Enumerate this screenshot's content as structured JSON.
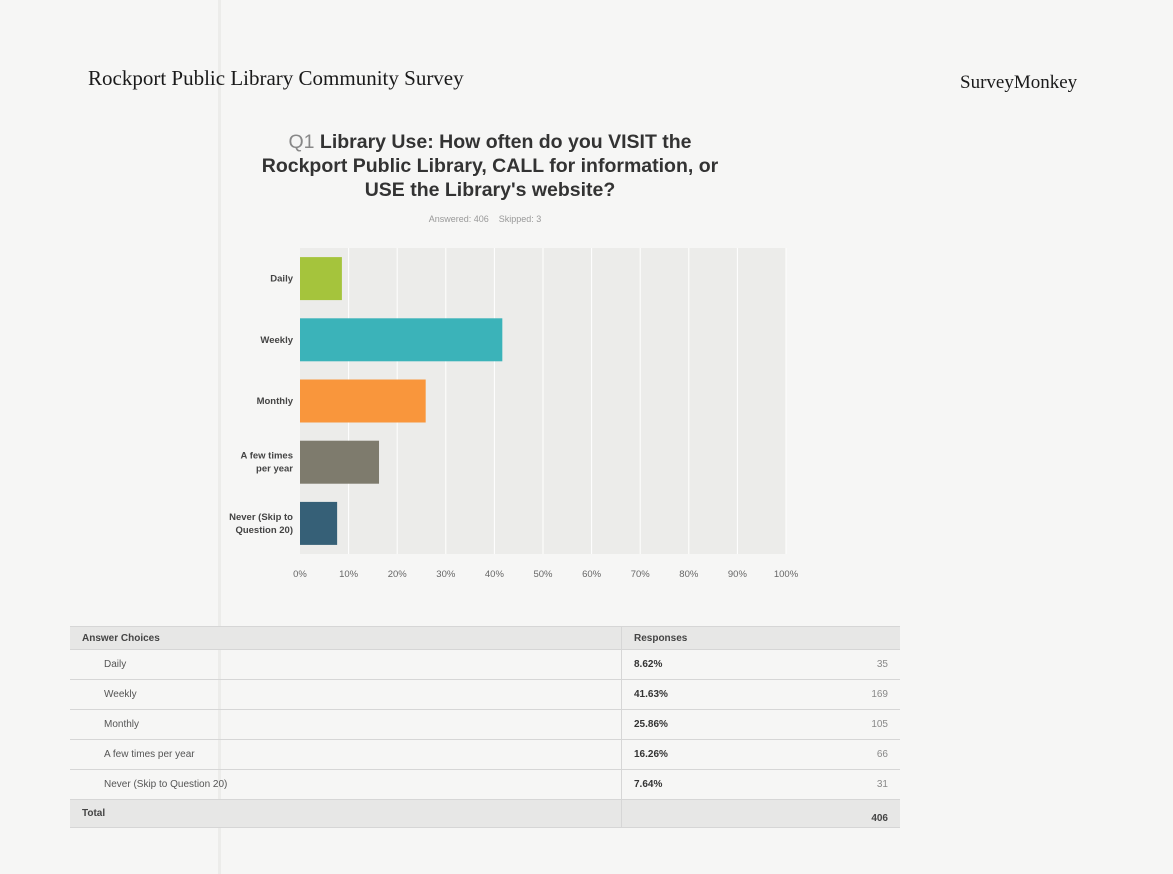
{
  "header": {
    "survey_title": "Rockport Public Library Community Survey",
    "brand": "SurveyMonkey"
  },
  "question": {
    "number": "Q1",
    "text": "Library Use: How often do you VISIT the Rockport Public Library, CALL for information, or USE the Library's website?",
    "answered": "Answered: 406",
    "skipped": "Skipped: 3"
  },
  "chart_data": {
    "type": "bar",
    "orientation": "horizontal",
    "title": "Q1 Library Use: How often do you VISIT the Rockport Public Library, CALL for information, or USE the Library's website?",
    "categories": [
      "Daily",
      "Weekly",
      "Monthly",
      "A few times per year",
      "Never (Skip to Question 20)"
    ],
    "category_lines": [
      [
        "Daily"
      ],
      [
        "Weekly"
      ],
      [
        "Monthly"
      ],
      [
        "A few times",
        "per year"
      ],
      [
        "Never (Skip to",
        "Question 20)"
      ]
    ],
    "values": [
      8.62,
      41.63,
      25.86,
      16.26,
      7.64
    ],
    "colors": [
      "#a5c43c",
      "#3bb3b9",
      "#f9963c",
      "#7e7b6d",
      "#366077"
    ],
    "xlim": [
      0,
      100
    ],
    "xticks": [
      "0%",
      "10%",
      "20%",
      "30%",
      "40%",
      "50%",
      "60%",
      "70%",
      "80%",
      "90%",
      "100%"
    ],
    "grid": true,
    "background": "#ececea"
  },
  "table": {
    "headers": {
      "choice": "Answer Choices",
      "responses": "Responses"
    },
    "rows": [
      {
        "choice": "Daily",
        "pct": "8.62%",
        "count": "35"
      },
      {
        "choice": "Weekly",
        "pct": "41.63%",
        "count": "169"
      },
      {
        "choice": "Monthly",
        "pct": "25.86%",
        "count": "105"
      },
      {
        "choice": "A few times per year",
        "pct": "16.26%",
        "count": "66"
      },
      {
        "choice": "Never (Skip to Question 20)",
        "pct": "7.64%",
        "count": "31"
      }
    ],
    "total_label": "Total",
    "total_count": "406"
  }
}
